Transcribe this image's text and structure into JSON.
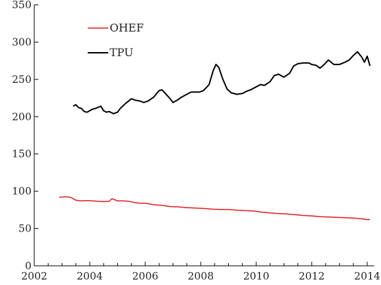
{
  "chart_data": {
    "type": "line",
    "title": "",
    "xlabel": "",
    "ylabel": "",
    "xlim": [
      2002,
      2014.25
    ],
    "ylim": [
      0,
      350
    ],
    "x_ticks": [
      2002,
      2004,
      2006,
      2008,
      2010,
      2012,
      2014
    ],
    "x_tick_labels": [
      "2002",
      "2004",
      "2006",
      "2008",
      "2010",
      "2012",
      "2014"
    ],
    "y_ticks": [
      0,
      50,
      100,
      150,
      200,
      250,
      300,
      350
    ],
    "y_tick_labels": [
      "0",
      "50",
      "100",
      "150",
      "200",
      "250",
      "300",
      "350"
    ],
    "grid": false,
    "legend": {
      "placement": "top-left"
    },
    "series": [
      {
        "name": "OHEF",
        "color": "#e41a1c",
        "x": [
          2002.9,
          2003.1,
          2003.3,
          2003.5,
          2003.7,
          2003.9,
          2004.1,
          2004.3,
          2004.5,
          2004.7,
          2004.8,
          2005.0,
          2005.2,
          2005.4,
          2005.6,
          2005.8,
          2006.0,
          2006.3,
          2006.6,
          2006.9,
          2007.2,
          2007.5,
          2007.8,
          2008.1,
          2008.4,
          2008.7,
          2009.0,
          2009.3,
          2009.6,
          2009.9,
          2010.2,
          2010.5,
          2010.8,
          2011.1,
          2011.4,
          2011.7,
          2012.0,
          2012.3,
          2012.6,
          2012.9,
          2013.2,
          2013.5,
          2013.8,
          2014.0,
          2014.1
        ],
        "y": [
          92,
          92.5,
          92,
          88,
          87,
          87.5,
          87,
          86.5,
          86,
          86.5,
          90,
          87,
          87,
          86.5,
          85,
          84,
          84,
          82,
          81,
          79.5,
          79,
          78,
          77.5,
          77,
          76,
          75.5,
          75.5,
          74.5,
          74,
          73.5,
          72,
          71,
          70,
          69.5,
          68.5,
          67.5,
          67,
          66,
          65.5,
          65,
          64.5,
          64,
          63,
          62,
          62
        ]
      },
      {
        "name": "TPU",
        "color": "#000000",
        "x": [
          2003.4,
          2003.5,
          2003.6,
          2003.7,
          2003.8,
          2003.9,
          2004.0,
          2004.1,
          2004.2,
          2004.4,
          2004.5,
          2004.6,
          2004.7,
          2004.85,
          2005.0,
          2005.1,
          2005.3,
          2005.5,
          2005.65,
          2005.8,
          2005.95,
          2006.1,
          2006.3,
          2006.5,
          2006.6,
          2006.75,
          2006.9,
          2007.0,
          2007.15,
          2007.3,
          2007.5,
          2007.65,
          2007.8,
          2007.95,
          2008.1,
          2008.3,
          2008.45,
          2008.55,
          2008.65,
          2008.8,
          2008.95,
          2009.1,
          2009.3,
          2009.5,
          2009.65,
          2009.8,
          2010.0,
          2010.15,
          2010.3,
          2010.5,
          2010.65,
          2010.8,
          2011.0,
          2011.2,
          2011.35,
          2011.5,
          2011.7,
          2011.9,
          2012.0,
          2012.15,
          2012.3,
          2012.45,
          2012.6,
          2012.8,
          2013.0,
          2013.2,
          2013.35,
          2013.5,
          2013.65,
          2013.8,
          2013.9,
          2014.0,
          2014.1
        ],
        "y": [
          214,
          216,
          212,
          211,
          207,
          206,
          208,
          210,
          211,
          214,
          208,
          206,
          207,
          204,
          206,
          211,
          218,
          224,
          222,
          221,
          219,
          221,
          226,
          235,
          236,
          230,
          224,
          219,
          222,
          226,
          230,
          233,
          233,
          233,
          235,
          243,
          262,
          270,
          266,
          250,
          237,
          232,
          230,
          231,
          234,
          236,
          240,
          243,
          242,
          247,
          255,
          257,
          253,
          258,
          268,
          271,
          272,
          272,
          270,
          269,
          265,
          270,
          276,
          270,
          270,
          273,
          276,
          282,
          287,
          280,
          273,
          281,
          268
        ]
      }
    ]
  }
}
